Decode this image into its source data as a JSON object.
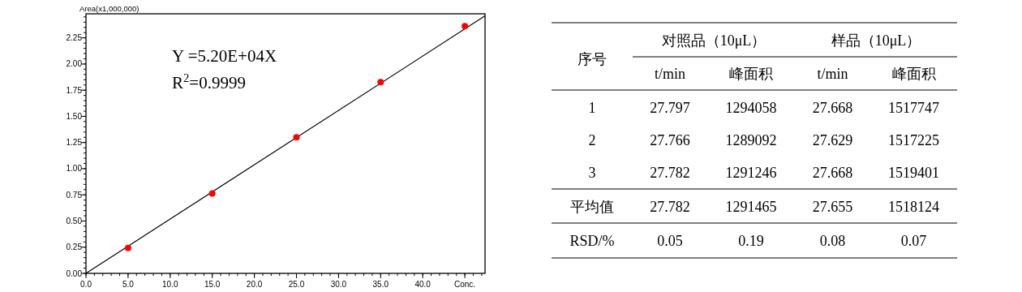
{
  "chart_data": [
    {
      "type": "scatter",
      "ylabel": "Area(x1,000,000)",
      "xlim": [
        0,
        47.4
      ],
      "ylim": [
        0,
        2.48
      ],
      "xticks": [
        {
          "value": 0,
          "label": "0.0"
        },
        {
          "value": 5,
          "label": "5.0"
        },
        {
          "value": 10,
          "label": "10.0"
        },
        {
          "value": 15,
          "label": "15.0"
        },
        {
          "value": 20,
          "label": "20.0"
        },
        {
          "value": 25,
          "label": "25.0"
        },
        {
          "value": 30,
          "label": "30.0"
        },
        {
          "value": 35,
          "label": "35.0"
        },
        {
          "value": 40,
          "label": "40.0"
        },
        {
          "value": 45,
          "label": "Conc."
        }
      ],
      "yticks": [
        {
          "value": 0,
          "label": "0.00"
        },
        0.25,
        {
          "value": 0.5,
          "label": "0.50"
        },
        0.75,
        {
          "value": 1,
          "label": "1.00"
        },
        1.25,
        {
          "value": 1.5,
          "label": "1.50"
        },
        1.75,
        {
          "value": 2,
          "label": "2.00"
        },
        2.25
      ],
      "grid": false,
      "series": [
        {
          "type": "line",
          "color": "#000000",
          "x": [
            0,
            47.4
          ],
          "values": [
            0,
            2.46
          ],
          "marker": "none"
        },
        {
          "type": "scatter",
          "color": "#ff0000",
          "x": [
            5,
            15,
            25,
            35,
            45
          ],
          "values": [
            0.243,
            0.763,
            1.301,
            1.828,
            2.362
          ],
          "marker": "circle"
        }
      ],
      "annotations": [
        "Y =5.20E+04X",
        "R$^{2}$=0.9999"
      ]
    },
    {
      "type": "other",
      "annotations": [
        "序号",
        "对照品（10μL）",
        "样品（10μL）",
        "t/min",
        "峰面积",
        "t/min",
        "峰面积",
        "1",
        "27.797",
        "1294058",
        "27.668",
        "1517747",
        "2",
        "27.766",
        "1289092",
        "27.629",
        "1517225",
        "3",
        "27.782",
        "1291246",
        "27.668",
        "1519401",
        "平均值",
        "27.782",
        "1291465",
        "27.655",
        "1518124",
        "RSD/%",
        "0.05",
        "0.19",
        "0.08",
        "0.07"
      ]
    }
  ]
}
